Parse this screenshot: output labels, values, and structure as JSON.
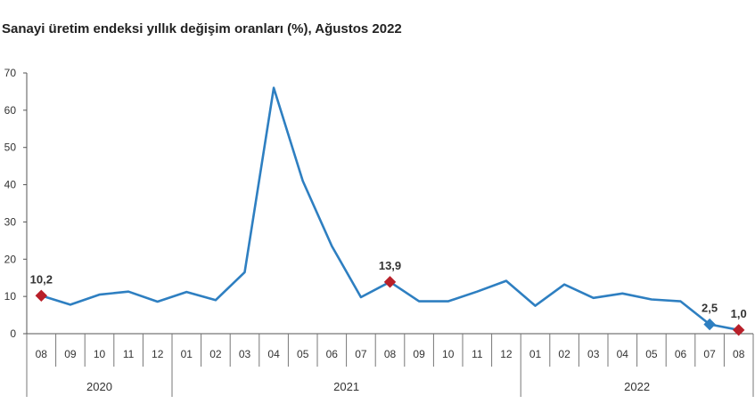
{
  "chart_data": {
    "type": "line",
    "title": "Sanayi üretim endeksi yıllık değişim oranları (%), Ağustos 2022",
    "xlabel": "",
    "ylabel": "",
    "ylim": [
      0,
      70
    ],
    "yticks": [
      "0",
      "10",
      "20",
      "30",
      "40",
      "50",
      "60",
      "70"
    ],
    "grid": false,
    "years": [
      {
        "label": "2020",
        "count": 5
      },
      {
        "label": "2021",
        "count": 12
      },
      {
        "label": "2022",
        "count": 8
      }
    ],
    "categories": [
      "08",
      "09",
      "10",
      "11",
      "12",
      "01",
      "02",
      "03",
      "04",
      "05",
      "06",
      "07",
      "08",
      "09",
      "10",
      "11",
      "12",
      "01",
      "02",
      "03",
      "04",
      "05",
      "06",
      "07",
      "08"
    ],
    "series": [
      {
        "color": "#2E7FC1",
        "values": [
          10.2,
          7.8,
          10.5,
          11.3,
          8.6,
          11.2,
          9.0,
          16.5,
          66.0,
          41.0,
          23.5,
          9.8,
          13.9,
          8.7,
          8.7,
          11.3,
          14.2,
          7.5,
          13.2,
          9.6,
          10.8,
          9.2,
          8.7,
          2.5,
          1.0
        ]
      }
    ],
    "highlighted_points": [
      {
        "index": 0,
        "label": "10,2",
        "color": "#B8202A"
      },
      {
        "index": 12,
        "label": "13,9",
        "color": "#B8202A"
      },
      {
        "index": 23,
        "label": "2,5",
        "color": "#2E7FC1"
      },
      {
        "index": 24,
        "label": "1,0",
        "color": "#B8202A"
      }
    ]
  }
}
